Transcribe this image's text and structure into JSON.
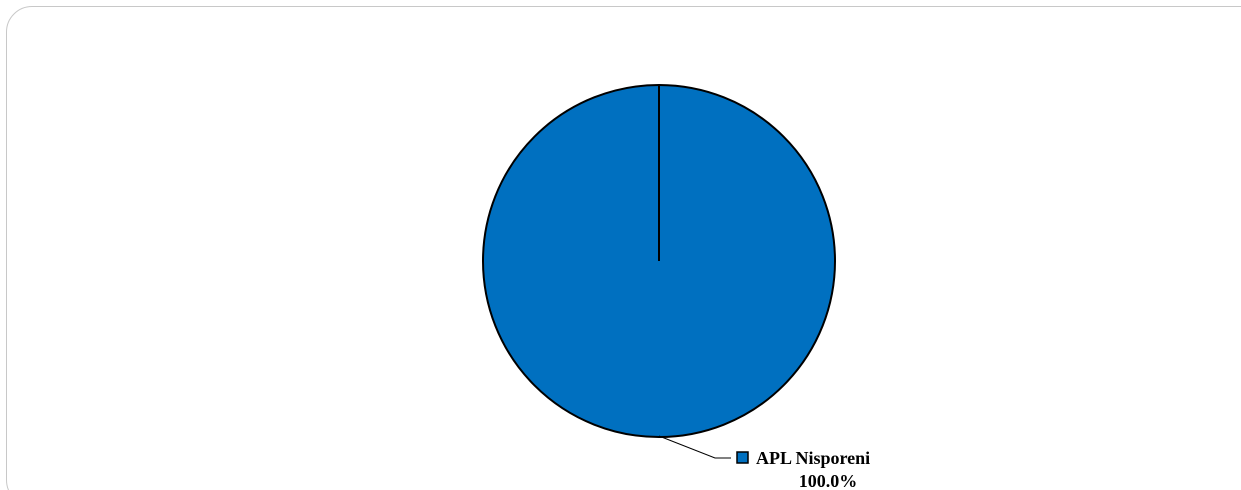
{
  "chart_data": {
    "type": "pie",
    "title": "",
    "slices": [
      {
        "label": "APL Nisporeni",
        "value": 100.0,
        "percent_label": "100.0%",
        "color": "#0070C0"
      }
    ]
  },
  "colors": {
    "slice_fill": "#0070C0",
    "slice_stroke": "#000000",
    "frame_border": "#c8c8c8"
  }
}
